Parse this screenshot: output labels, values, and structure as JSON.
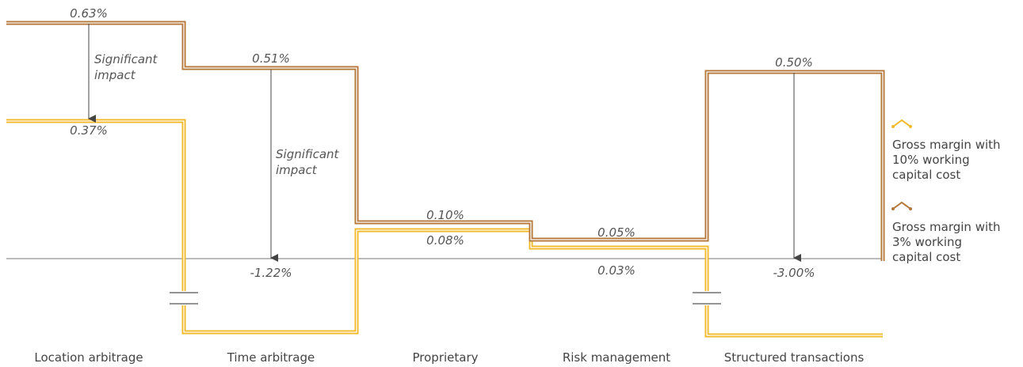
{
  "chart_data": {
    "type": "line",
    "categories": [
      "Location arbitrage",
      "Time arbitrage",
      "Proprietary",
      "Risk management",
      "Structured transactions"
    ],
    "series": [
      {
        "name": "Gross margin with 3% working capital cost",
        "color": "#b5773a",
        "values": [
          0.63,
          0.51,
          0.1,
          0.05,
          0.5
        ],
        "labels": [
          "0.63%",
          "0.51%",
          "0.10%",
          "0.05%",
          "0.50%"
        ]
      },
      {
        "name": "Gross margin with 10% working capital cost",
        "color": "#f2b92a",
        "values": [
          0.37,
          -1.22,
          0.08,
          0.03,
          -3.0
        ],
        "labels": [
          "0.37%",
          "-1.22%",
          "0.08%",
          "0.03%",
          "-3.00%"
        ]
      }
    ],
    "annotations": [
      {
        "text_lines": [
          "Significant",
          "impact"
        ],
        "category": "Location arbitrage"
      },
      {
        "text_lines": [
          "Significant",
          "impact"
        ],
        "category": "Time arbitrage"
      }
    ],
    "axis_break_symbol": "broken-axis",
    "legend": {
      "placement": "right",
      "items": [
        {
          "lines": [
            "Gross margin with",
            "10% working",
            "capital cost"
          ],
          "color": "#f2b92a",
          "icon": "chevron-line-icon"
        },
        {
          "lines": [
            "Gross margin with",
            "3% working",
            "capital cost"
          ],
          "color": "#b5773a",
          "icon": "chevron-line-icon"
        }
      ]
    },
    "grid": false
  }
}
